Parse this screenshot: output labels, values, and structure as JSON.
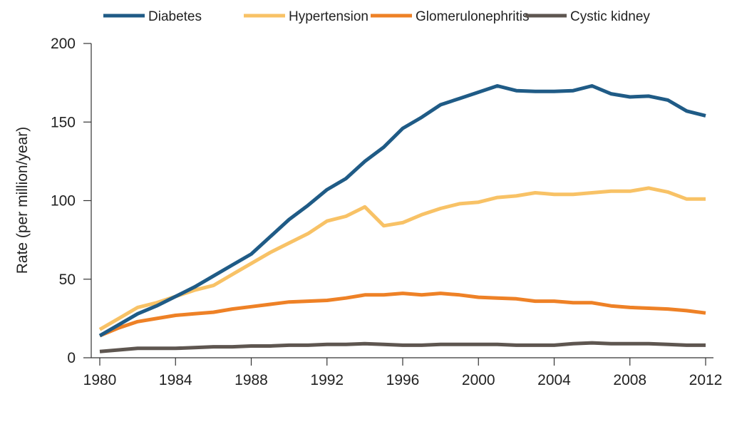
{
  "chart_data": {
    "type": "line",
    "title": "",
    "xlabel": "",
    "ylabel": "Rate (per million/year)",
    "xlim": [
      1980,
      2012
    ],
    "ylim": [
      0,
      200
    ],
    "x_ticks": [
      1980,
      1984,
      1988,
      1992,
      1996,
      2000,
      2004,
      2008,
      2012
    ],
    "y_ticks": [
      0,
      50,
      100,
      150,
      200
    ],
    "grid": false,
    "legend_position": "top",
    "x": [
      1980,
      1981,
      1982,
      1983,
      1984,
      1985,
      1986,
      1987,
      1988,
      1989,
      1990,
      1991,
      1992,
      1993,
      1994,
      1995,
      1996,
      1997,
      1998,
      1999,
      2000,
      2001,
      2002,
      2003,
      2004,
      2005,
      2006,
      2007,
      2008,
      2009,
      2010,
      2011,
      2012
    ],
    "series": [
      {
        "name": "Diabetes",
        "color": "#1f5b86",
        "values": [
          14,
          21,
          28,
          33,
          39,
          45,
          52,
          59,
          66,
          77,
          88,
          97,
          107,
          114,
          125,
          134,
          146,
          153,
          161,
          165,
          169,
          173,
          170,
          169.5,
          169.5,
          170,
          173,
          168,
          166,
          166.5,
          164,
          157,
          154
        ]
      },
      {
        "name": "Hypertension",
        "color": "#f8c266",
        "values": [
          18,
          25,
          32,
          35,
          39,
          43,
          46,
          53,
          60,
          67,
          73,
          79,
          87,
          90,
          96,
          84,
          86,
          91,
          95,
          98,
          99,
          102,
          103,
          105,
          104,
          104,
          105,
          106,
          106,
          108,
          105.5,
          101,
          101
        ]
      },
      {
        "name": "Glomerulonephritis",
        "color": "#ee8126",
        "values": [
          14,
          19,
          23,
          25,
          27,
          28,
          29,
          31,
          32.5,
          34,
          35.5,
          36,
          36.5,
          38,
          40,
          40,
          41,
          40,
          41,
          40,
          38.5,
          38,
          37.5,
          36,
          36,
          35,
          35,
          33,
          32,
          31.5,
          31,
          30,
          28.5
        ]
      },
      {
        "name": "Cystic kidney",
        "color": "#5e5650",
        "values": [
          4,
          5,
          6,
          6,
          6,
          6.5,
          7,
          7,
          7.5,
          7.5,
          8,
          8,
          8.5,
          8.5,
          9,
          8.5,
          8,
          8,
          8.5,
          8.5,
          8.5,
          8.5,
          8,
          8,
          8,
          9,
          9.5,
          9,
          9,
          9,
          8.5,
          8,
          8
        ]
      }
    ]
  }
}
